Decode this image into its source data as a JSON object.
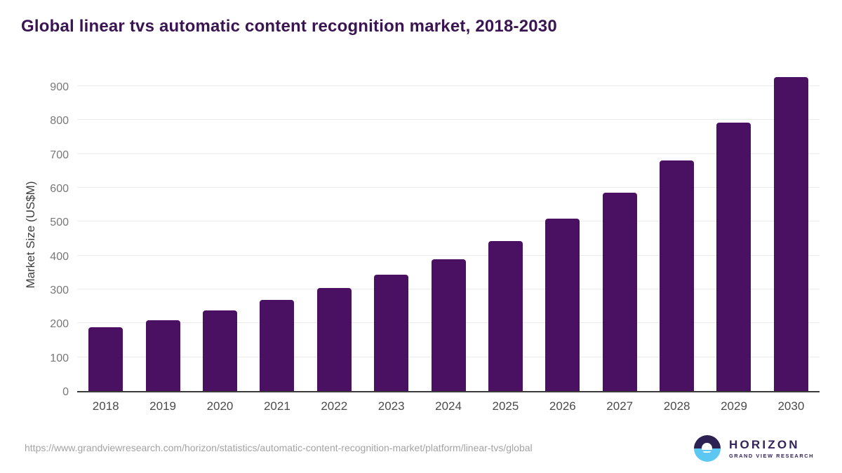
{
  "title": "Global linear tvs automatic content recognition market, 2018-2030",
  "chart_data": {
    "type": "bar",
    "title": "Global linear tvs automatic content recognition market, 2018-2030",
    "categories": [
      "2018",
      "2019",
      "2020",
      "2021",
      "2022",
      "2023",
      "2024",
      "2025",
      "2026",
      "2027",
      "2028",
      "2029",
      "2030"
    ],
    "values": [
      188,
      210,
      238,
      268,
      305,
      343,
      388,
      442,
      508,
      585,
      680,
      793,
      926
    ],
    "xlabel": "",
    "ylabel": "Market Size (US$M)",
    "ylim": [
      0,
      931
    ],
    "yticks": [
      0,
      100,
      200,
      300,
      400,
      500,
      600,
      700,
      800,
      900
    ],
    "grid": "horizontal",
    "legend": "none",
    "bar_color": "#4a1061",
    "grid_color": "#eaeaea",
    "axis_color": "#3b3b3b"
  },
  "footer": {
    "source_url": "https://www.grandviewresearch.com/horizon/statistics/automatic-content-recognition-market/platform/linear-tvs/global",
    "logo": {
      "brand": "HORIZON",
      "tagline": "GRAND VIEW RESEARCH",
      "icon": "sunset-horizon-icon",
      "dark_color": "#2d2153",
      "blue_color": "#5cc8f2"
    }
  }
}
